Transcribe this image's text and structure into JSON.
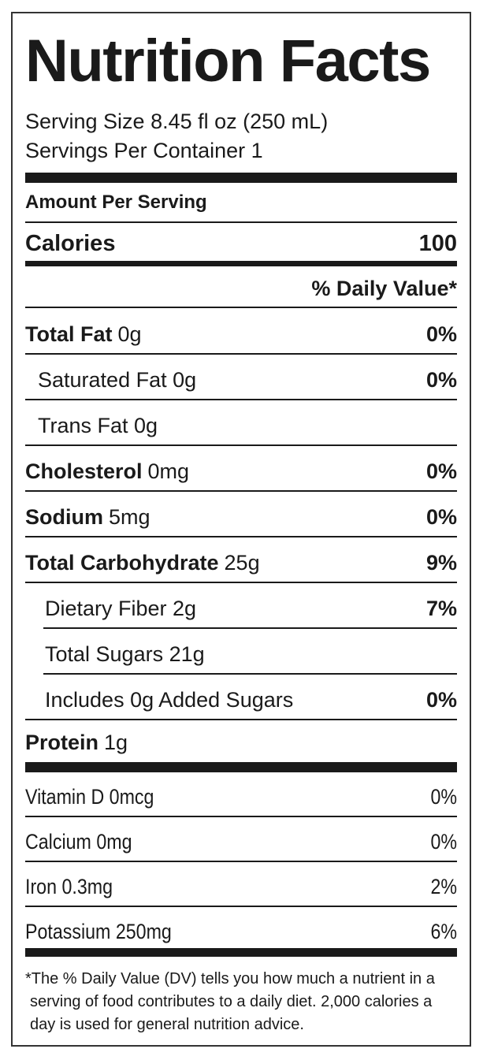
{
  "title": "Nutrition Facts",
  "serving_size": "Serving Size 8.45 fl oz (250 mL)",
  "servings_per_container": "Servings Per Container 1",
  "amount_per_serving": "Amount Per Serving",
  "calories": {
    "label": "Calories",
    "value": 100
  },
  "daily_value_header": "% Daily Value*",
  "nutrients": [
    {
      "name": "Total Fat",
      "amount": "0g",
      "dv": "0%",
      "bold": true,
      "indent": 0
    },
    {
      "name": "Saturated Fat 0g",
      "dv": "0%",
      "bold": false,
      "indent": 1
    },
    {
      "name": "Trans Fat 0g",
      "bold": false,
      "indent": 1
    },
    {
      "name": "Cholesterol",
      "amount": "0mg",
      "dv": "0%",
      "bold": true,
      "indent": 0
    },
    {
      "name": "Sodium",
      "amount": "5mg",
      "dv": "0%",
      "bold": true,
      "indent": 0
    },
    {
      "name": "Total Carbohydrate",
      "amount": "25g",
      "dv": "9%",
      "bold": true,
      "indent": 0
    },
    {
      "name": "Dietary Fiber 2g",
      "dv": "7%",
      "bold": false,
      "indent": 2
    },
    {
      "name": "Total Sugars 21g",
      "bold": false,
      "indent": 2
    },
    {
      "name": "Includes 0g Added Sugars",
      "dv": "0%",
      "bold": false,
      "indent": 2
    },
    {
      "name": "Protein",
      "amount": "1g",
      "bold": true,
      "indent": 0
    }
  ],
  "vitamins": [
    {
      "label": "Vitamin D 0mcg",
      "dv": "0%"
    },
    {
      "label": "Calcium 0mg",
      "dv": "0%"
    },
    {
      "label": "Iron 0.3mg",
      "dv": "2%"
    },
    {
      "label": "Potassium 250mg",
      "dv": "6%"
    }
  ],
  "footnote": [
    "*The % Daily Value (DV) tells you how much a nutrient in a",
    "serving of food contributes to a daily diet. 2,000 calories a",
    "day is used for general nutrition advice."
  ]
}
